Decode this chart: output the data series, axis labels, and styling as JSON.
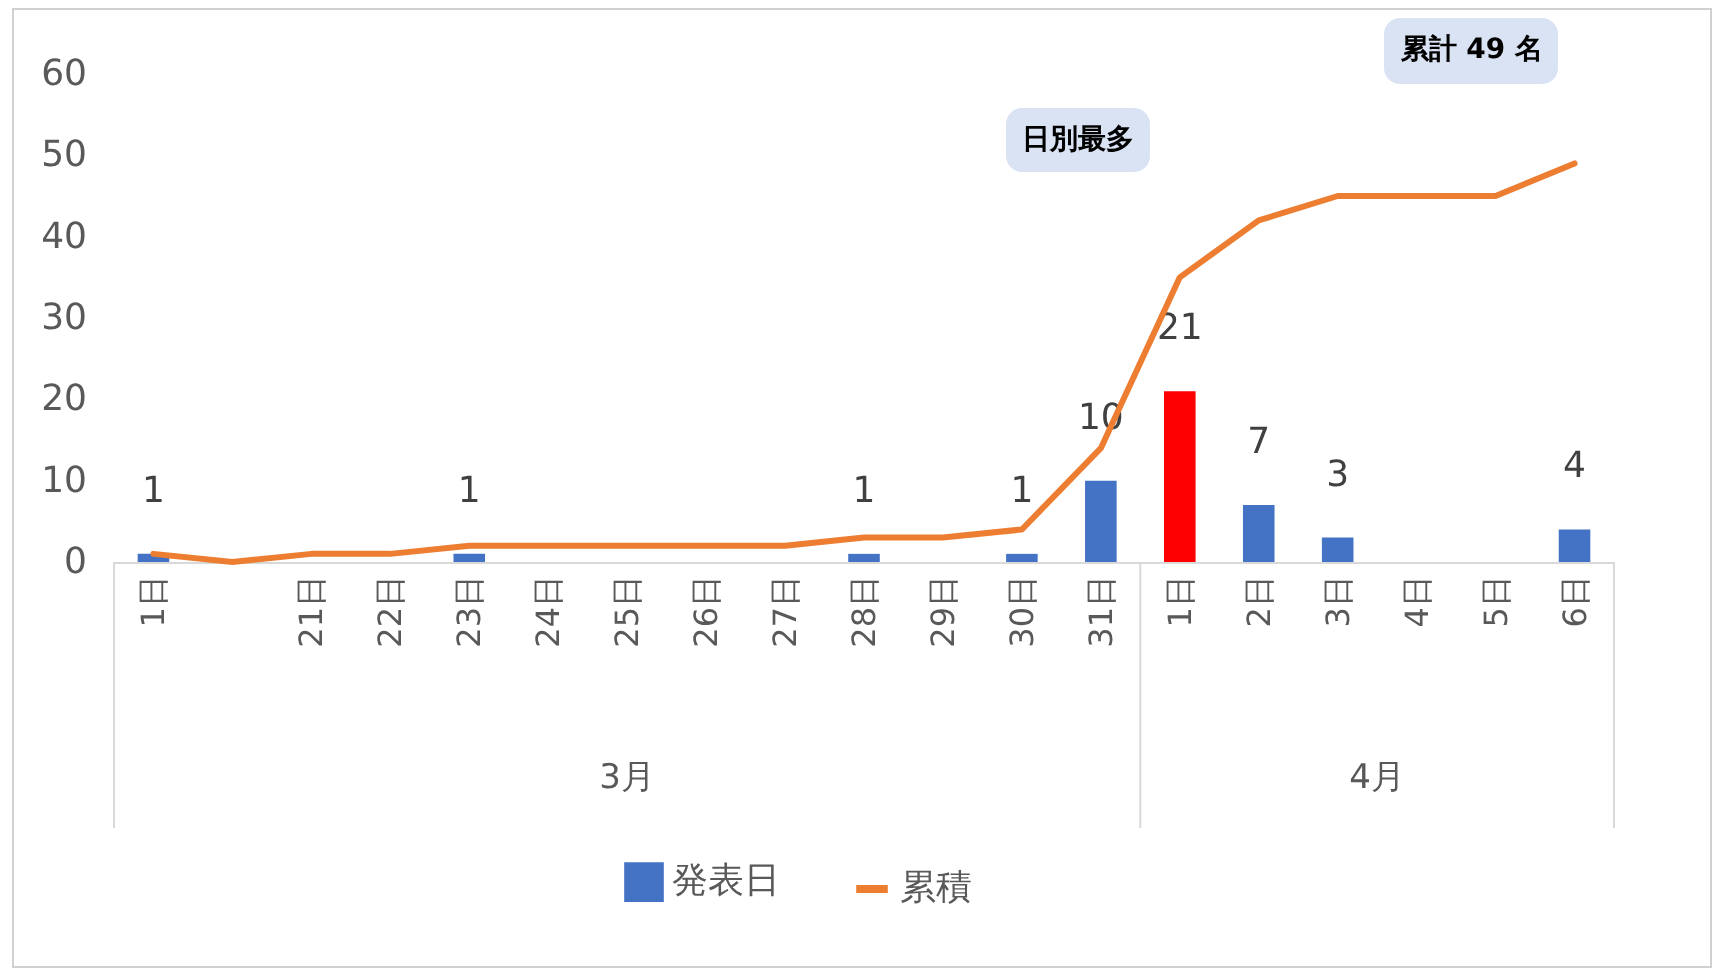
{
  "chart_data": {
    "type": "bar",
    "categories": [
      "1日",
      null,
      "21日",
      "22日",
      "23日",
      "24日",
      "25日",
      "26日",
      "27日",
      "28日",
      "29日",
      "30日",
      "31日",
      "1日",
      "2日",
      "3日",
      "4日",
      "5日",
      "6日"
    ],
    "series": [
      {
        "name": "発表日",
        "color": "#4472c4",
        "colors": [
          "#4472c4",
          "#4472c4",
          "#4472c4",
          "#4472c4",
          "#4472c4",
          "#4472c4",
          "#4472c4",
          "#4472c4",
          "#4472c4",
          "#4472c4",
          "#4472c4",
          "#4472c4",
          "#4472c4",
          "#ff0000",
          "#4472c4",
          "#4472c4",
          "#4472c4",
          "#4472c4",
          "#4472c4"
        ],
        "values": [
          1,
          0,
          0,
          0,
          1,
          0,
          0,
          0,
          0,
          1,
          0,
          1,
          10,
          21,
          7,
          3,
          0,
          0,
          4
        ],
        "value_labels": [
          "1",
          null,
          null,
          null,
          "1",
          null,
          null,
          null,
          null,
          "1",
          null,
          "1",
          "10",
          "21",
          "7",
          "3",
          null,
          null,
          "4"
        ]
      },
      {
        "name": "累積",
        "type": "line",
        "color": "#ed7d31",
        "values": [
          1,
          0,
          1,
          1,
          2,
          2,
          2,
          2,
          2,
          3,
          3,
          4,
          14,
          35,
          42,
          45,
          45,
          45,
          49
        ]
      }
    ],
    "ylim": [
      0,
      60
    ],
    "yticks": [
      0,
      10,
      20,
      30,
      40,
      50,
      60
    ],
    "grid": false,
    "legend": "bottom",
    "annotations": [
      "日別最多",
      "累計 49 名",
      "3月",
      "4月"
    ]
  }
}
